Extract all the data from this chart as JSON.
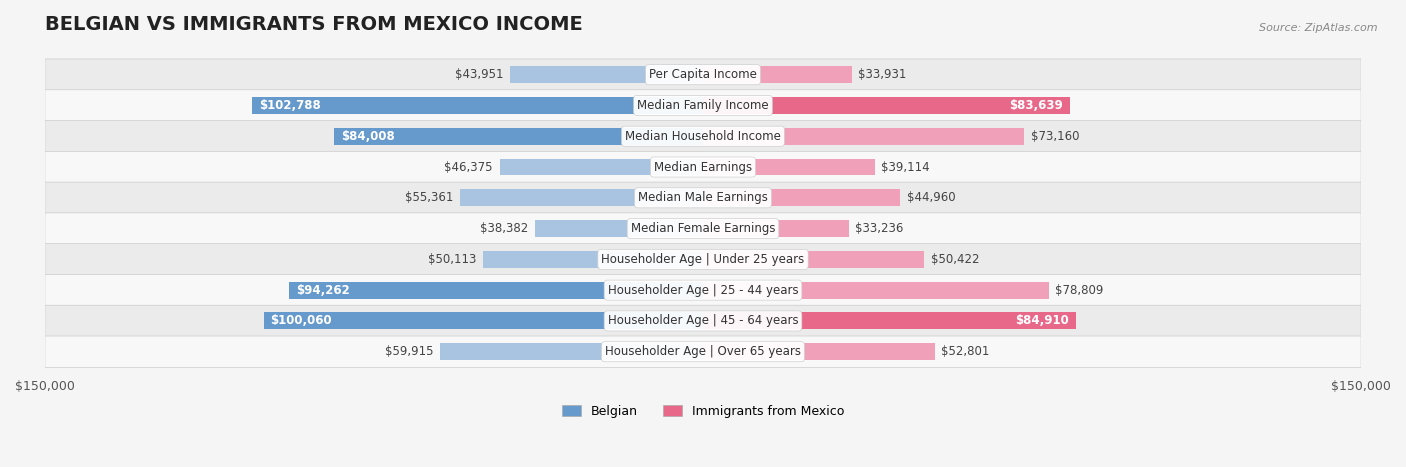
{
  "title": "BELGIAN VS IMMIGRANTS FROM MEXICO INCOME",
  "source": "Source: ZipAtlas.com",
  "categories": [
    "Per Capita Income",
    "Median Family Income",
    "Median Household Income",
    "Median Earnings",
    "Median Male Earnings",
    "Median Female Earnings",
    "Householder Age | Under 25 years",
    "Householder Age | 25 - 44 years",
    "Householder Age | 45 - 64 years",
    "Householder Age | Over 65 years"
  ],
  "belgian_values": [
    43951,
    102788,
    84008,
    46375,
    55361,
    38382,
    50113,
    94262,
    100060,
    59915
  ],
  "mexico_values": [
    33931,
    83639,
    73160,
    39114,
    44960,
    33236,
    50422,
    78809,
    84910,
    52801
  ],
  "belgian_labels": [
    "$43,951",
    "$102,788",
    "$84,008",
    "$46,375",
    "$55,361",
    "$38,382",
    "$50,113",
    "$94,262",
    "$100,060",
    "$59,915"
  ],
  "mexico_labels": [
    "$33,931",
    "$83,639",
    "$73,160",
    "$39,114",
    "$44,960",
    "$33,236",
    "$50,422",
    "$78,809",
    "$84,910",
    "$52,801"
  ],
  "max_value": 150000,
  "belgian_color_light": "#a8c4e0",
  "belgian_color_dark": "#6699cc",
  "mexico_color_light": "#f0a0b8",
  "mexico_color_dark": "#e8688a",
  "belgian_dark_threshold": 80000,
  "mexico_dark_threshold": 80000,
  "background_color": "#f5f5f5",
  "row_bg_color": "#ffffff",
  "row_alt_bg_color": "#f0f0f0",
  "label_fontsize": 8.5,
  "category_fontsize": 8.5,
  "title_fontsize": 14,
  "legend_fontsize": 9,
  "axis_label_fontsize": 9
}
